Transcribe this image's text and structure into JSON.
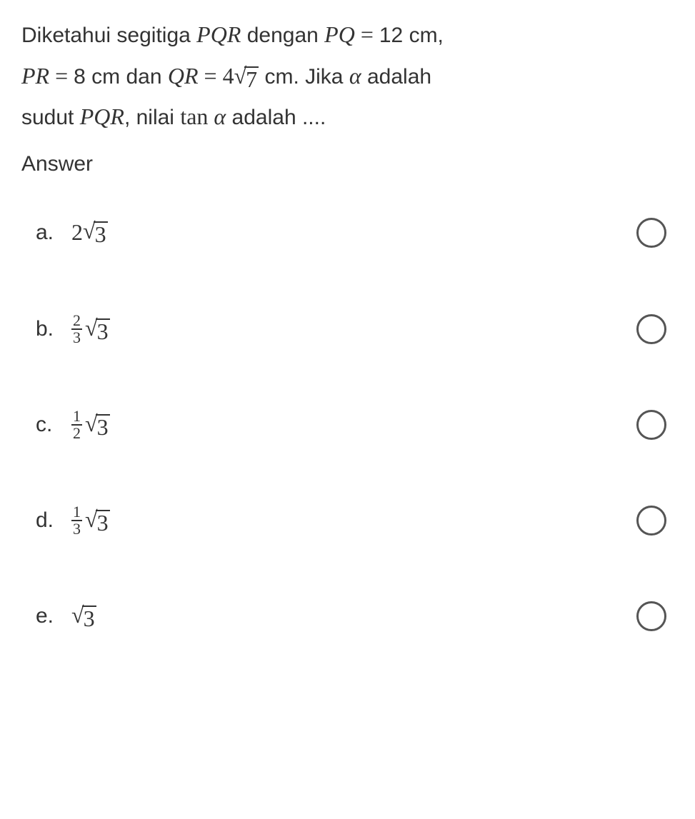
{
  "question": {
    "line1_part1": "Diketahui segitiga ",
    "line1_math1": "PQR",
    "line1_part2": " dengan ",
    "line1_math2_lhs": "PQ",
    "line1_math2_eq": " = ",
    "line1_part3": " 12 cm,",
    "line2_math1_lhs": "PR",
    "line2_math1_eq": " = ",
    "line2_part1": " 8 cm dan ",
    "line2_math2_lhs": "QR",
    "line2_math2_eq": " = ",
    "line2_math2_coef": "4",
    "line2_math2_rad": "7",
    "line2_part2": " cm. Jika ",
    "line2_alpha": "α",
    "line2_part3": " adalah",
    "line3_part1": "sudut ",
    "line3_math1": "PQR",
    "line3_part2": ", nilai ",
    "line3_tan": "tan ",
    "line3_alpha": "α",
    "line3_part3": " adalah ...."
  },
  "answer_label": "Answer",
  "options": {
    "a": {
      "letter": "a.",
      "coef": "2",
      "rad": "3"
    },
    "b": {
      "letter": "b.",
      "num": "2",
      "den": "3",
      "rad": "3"
    },
    "c": {
      "letter": "c.",
      "num": "1",
      "den": "2",
      "rad": "3"
    },
    "d": {
      "letter": "d.",
      "num": "1",
      "den": "3",
      "rad": "3"
    },
    "e": {
      "letter": "e.",
      "rad": "3"
    }
  },
  "styling": {
    "background_color": "#ffffff",
    "text_color": "#333333",
    "body_font_size": 30,
    "math_font_family": "Times New Roman",
    "radio_border_color": "#555555",
    "radio_size": 42
  }
}
